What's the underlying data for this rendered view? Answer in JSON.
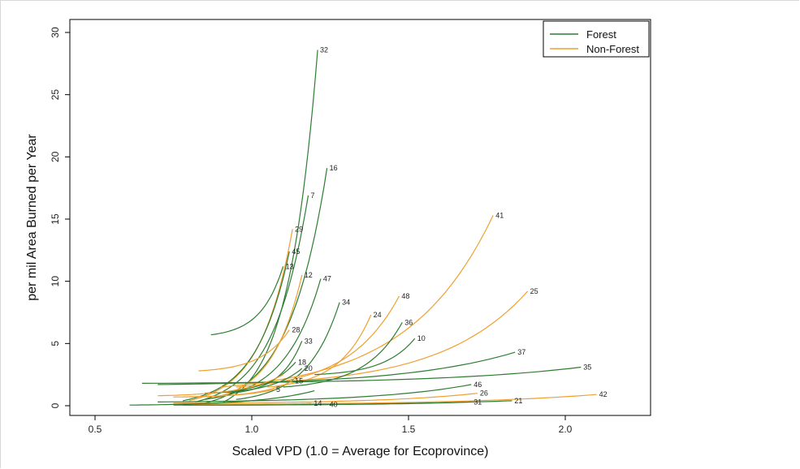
{
  "chart_data": {
    "type": "line",
    "xlabel": "Scaled VPD (1.0 = Average for Ecoprovince)",
    "ylabel": "per mil Area Burned per Year",
    "xlim": [
      0.5,
      2.2
    ],
    "ylim": [
      0,
      30
    ],
    "xticks": [
      0.5,
      1.0,
      1.5,
      2.0
    ],
    "xtick_labels": [
      "0.5",
      "1.0",
      "1.5",
      "2.0"
    ],
    "yticks": [
      0,
      5,
      10,
      15,
      20,
      25,
      30
    ],
    "ytick_labels": [
      "0",
      "5",
      "10",
      "15",
      "20",
      "25",
      "30"
    ],
    "grid": false,
    "legend": {
      "position": "top-right",
      "entries": [
        {
          "name": "Forest",
          "color": "#2e7d32"
        },
        {
          "name": "Non-Forest",
          "color": "#f0a030"
        }
      ]
    },
    "colors": {
      "Forest": "#2e7d32",
      "Non-Forest": "#f0a030"
    },
    "series": [
      {
        "label": "32",
        "type": "Forest",
        "x": [
          0.91,
          1.21
        ],
        "y": [
          0.3,
          28.6
        ]
      },
      {
        "label": "16",
        "type": "Forest",
        "x": [
          0.85,
          1.24
        ],
        "y": [
          0.2,
          19.1
        ]
      },
      {
        "label": "7",
        "type": "Forest",
        "x": [
          0.82,
          1.18
        ],
        "y": [
          0.3,
          16.9
        ]
      },
      {
        "label": "29",
        "type": "Non-Forest",
        "x": [
          0.8,
          1.13
        ],
        "y": [
          0.4,
          14.2
        ]
      },
      {
        "label": "45",
        "type": "Forest",
        "x": [
          0.78,
          1.12
        ],
        "y": [
          0.4,
          12.4
        ]
      },
      {
        "label": "13",
        "type": "Forest",
        "x": [
          0.87,
          1.1
        ],
        "y": [
          5.7,
          11.2
        ]
      },
      {
        "label": "12",
        "type": "Non-Forest",
        "x": [
          0.85,
          1.16
        ],
        "y": [
          0.5,
          10.5
        ]
      },
      {
        "label": "47",
        "type": "Forest",
        "x": [
          0.85,
          1.22
        ],
        "y": [
          0.5,
          10.2
        ]
      },
      {
        "label": "34",
        "type": "Forest",
        "x": [
          0.95,
          1.28
        ],
        "y": [
          0.5,
          8.3
        ]
      },
      {
        "label": "41",
        "type": "Non-Forest",
        "x": [
          0.9,
          1.77
        ],
        "y": [
          1.5,
          15.3
        ]
      },
      {
        "label": "48",
        "type": "Non-Forest",
        "x": [
          0.95,
          1.47
        ],
        "y": [
          1.5,
          8.8
        ]
      },
      {
        "label": "25",
        "type": "Non-Forest",
        "x": [
          1.0,
          1.88
        ],
        "y": [
          1.8,
          9.2
        ]
      },
      {
        "label": "24",
        "type": "Non-Forest",
        "x": [
          1.05,
          1.38
        ],
        "y": [
          1.5,
          7.3
        ]
      },
      {
        "label": "36",
        "type": "Forest",
        "x": [
          1.1,
          1.48
        ],
        "y": [
          1.5,
          6.7
        ]
      },
      {
        "label": "28",
        "type": "Non-Forest",
        "x": [
          0.83,
          1.12
        ],
        "y": [
          2.8,
          6.1
        ]
      },
      {
        "label": "10",
        "type": "Forest",
        "x": [
          1.2,
          1.52
        ],
        "y": [
          2.5,
          5.4
        ]
      },
      {
        "label": "33",
        "type": "Forest",
        "x": [
          0.93,
          1.16
        ],
        "y": [
          1.0,
          5.2
        ]
      },
      {
        "label": "37",
        "type": "Forest",
        "x": [
          0.7,
          1.84
        ],
        "y": [
          1.7,
          4.3
        ]
      },
      {
        "label": "18",
        "type": "Forest",
        "x": [
          0.85,
          1.14
        ],
        "y": [
          1.0,
          3.5
        ]
      },
      {
        "label": "20",
        "type": "Forest",
        "x": [
          0.85,
          1.16
        ],
        "y": [
          1.0,
          3.0
        ]
      },
      {
        "label": "35",
        "type": "Forest",
        "x": [
          0.65,
          2.05
        ],
        "y": [
          1.8,
          3.1
        ]
      },
      {
        "label": "15",
        "type": "Non-Forest",
        "x": [
          0.8,
          1.13
        ],
        "y": [
          0.7,
          2.0
        ]
      },
      {
        "label": "5",
        "type": "Non-Forest",
        "x": [
          0.75,
          1.07
        ],
        "y": [
          0.7,
          1.3
        ]
      },
      {
        "label": "46",
        "type": "Forest",
        "x": [
          0.7,
          1.7
        ],
        "y": [
          0.3,
          1.7
        ]
      },
      {
        "label": "26",
        "type": "Non-Forest",
        "x": [
          0.75,
          1.72
        ],
        "y": [
          0.2,
          1.0
        ]
      },
      {
        "label": "21",
        "type": "Forest",
        "x": [
          0.8,
          1.83
        ],
        "y": [
          0.1,
          0.4
        ]
      },
      {
        "label": "42",
        "type": "Non-Forest",
        "x": [
          0.75,
          2.1
        ],
        "y": [
          0.1,
          0.9
        ]
      },
      {
        "label": "31",
        "type": "Forest",
        "x": [
          0.78,
          1.7
        ],
        "y": [
          0.05,
          0.3
        ]
      },
      {
        "label": "14",
        "type": "Non-Forest",
        "x": [
          0.8,
          1.19
        ],
        "y": [
          0.05,
          0.2
        ]
      },
      {
        "label": "40",
        "type": "Forest",
        "x": [
          0.75,
          1.24
        ],
        "y": [
          0.05,
          0.1
        ]
      },
      {
        "label": "",
        "type": "Forest",
        "x": [
          0.61,
          1.2
        ],
        "y": [
          0.05,
          1.2
        ]
      },
      {
        "label": "",
        "type": "Non-Forest",
        "x": [
          0.7,
          1.1
        ],
        "y": [
          0.8,
          2.5
        ]
      }
    ]
  }
}
